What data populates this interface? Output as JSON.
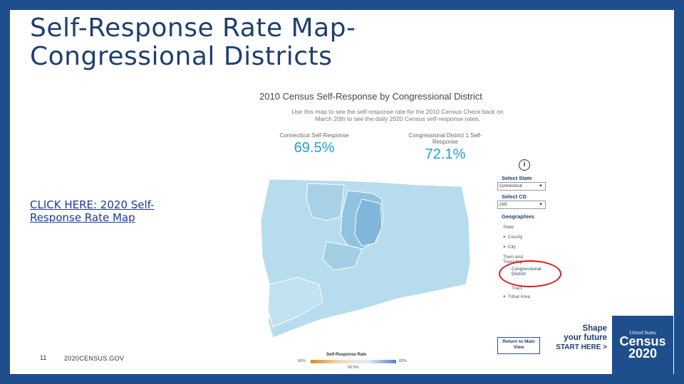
{
  "slide": {
    "title_line1": "Self-Response Rate Map-",
    "title_line2": "Congressional Districts",
    "link_text": "CLICK HERE: 2020 Self-Response Rate Map",
    "slide_number": "11",
    "footer_url": "2020CENSUS.GOV"
  },
  "map": {
    "title": "2010 Census Self-Response by Congressional District",
    "subtitle": "Use this map to see the self-response rate for the 2010 Census Check back on March 20th to see the daily 2020 Census self-response rates.",
    "stat_left_label": "Connecticut Self-Response",
    "stat_left_value": "69.5%",
    "stat_right_label": "Congressional District 1 Self-Response",
    "stat_right_value": "72.1%"
  },
  "panel": {
    "select_state_label": "Select State",
    "state_value": "Connecticut",
    "select_cd_label": "Select CD",
    "cd_value": "(All)",
    "geographies_label": "Geographies",
    "geo_items": [
      "State",
      "County",
      "City",
      "Town and Township",
      "Congressional District",
      "Tract",
      "Tribal Area"
    ],
    "return_button": "Return to Main View"
  },
  "legend": {
    "title": "Self-Response Rate",
    "min": "60%",
    "mid": "66.5%",
    "max": "83%"
  },
  "branding": {
    "shape_line1": "Shape",
    "shape_line2": "your future",
    "shape_line3": "START HERE >",
    "census_us": "United States",
    "census_word": "Census",
    "census_year": "2020"
  },
  "colors": {
    "background": "#1f4e8c",
    "title": "#1f3f6e",
    "stat_value": "#1f9fd8",
    "highlight": "#d81b1b"
  }
}
